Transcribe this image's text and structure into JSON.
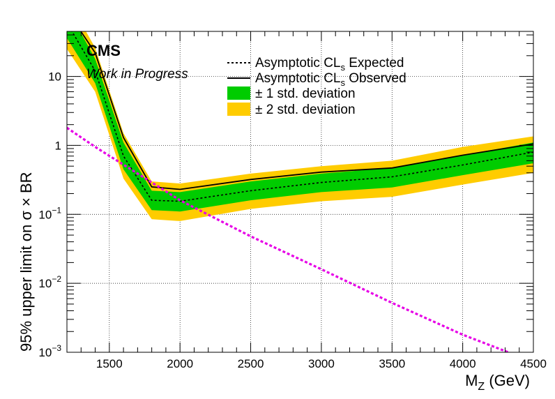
{
  "chart_data": {
    "type": "line",
    "title": "",
    "experiment_label": "CMS",
    "status_label": "Work in Progress",
    "xlabel": "M",
    "xlabel_sub": "Z",
    "xlabel_unit": " (GeV)",
    "ylabel": "95% upper limit on  σ × BR",
    "xlim": [
      1200,
      4500
    ],
    "ylim": [
      0.001,
      45
    ],
    "yscale": "log",
    "grid": true,
    "x_ticks": [
      1500,
      2000,
      2500,
      3000,
      3500,
      4000,
      4500
    ],
    "x_tick_labels": [
      "1500",
      "2000",
      "2500",
      "3000",
      "3500",
      "4000",
      "4500"
    ],
    "y_ticks": [
      {
        "value": 10,
        "base": "10",
        "exp": ""
      },
      {
        "value": 1,
        "base": "1",
        "exp": ""
      },
      {
        "value": 0.1,
        "base": "10",
        "exp": "−1"
      },
      {
        "value": 0.01,
        "base": "10",
        "exp": "−2"
      },
      {
        "value": 0.001,
        "base": "10",
        "exp": "−3"
      }
    ],
    "legend_position": "top-center",
    "legend": [
      {
        "label_pre": "Asymptotic CL",
        "label_sub": "s",
        "label_post": " Expected",
        "style": "dotted-line"
      },
      {
        "label_pre": "Asymptotic CL",
        "label_sub": "s",
        "label_post": " Observed",
        "style": "solid-line"
      },
      {
        "label_pre": "± 1 std. deviation",
        "label_sub": "",
        "label_post": "",
        "style": "green-box"
      },
      {
        "label_pre": "± 2 std. deviation",
        "label_sub": "",
        "label_post": "",
        "style": "yellow-box"
      }
    ],
    "colors": {
      "band_1sigma": "#00cc00",
      "band_2sigma": "#ffcc00",
      "theory": "#e600e6",
      "expected": "#000000",
      "observed": "#000000"
    },
    "series": [
      {
        "key": "expected",
        "x": [
          1200,
          1400,
          1600,
          1800,
          2000,
          2500,
          3000,
          3500,
          4000,
          4500
        ],
        "values": [
          60,
          12,
          0.7,
          0.16,
          0.155,
          0.22,
          0.29,
          0.35,
          0.52,
          0.8
        ]
      },
      {
        "key": "observed",
        "x": [
          1200,
          1400,
          1600,
          1800,
          2000,
          2500,
          3000,
          3500,
          4000,
          4500
        ],
        "values": [
          90,
          22,
          1.3,
          0.25,
          0.23,
          0.32,
          0.41,
          0.47,
          0.72,
          1.05
        ]
      },
      {
        "key": "band_1sigma",
        "x": [
          1200,
          1400,
          1600,
          1800,
          2000,
          2500,
          3000,
          3500,
          4000,
          4500
        ],
        "low": [
          36,
          8,
          0.45,
          0.115,
          0.11,
          0.16,
          0.21,
          0.245,
          0.37,
          0.55
        ],
        "high": [
          100,
          18,
          1.1,
          0.22,
          0.21,
          0.3,
          0.39,
          0.47,
          0.72,
          1.1
        ]
      },
      {
        "key": "band_2sigma",
        "x": [
          1200,
          1400,
          1600,
          1800,
          2000,
          2500,
          3000,
          3500,
          4000,
          4500
        ],
        "low": [
          25,
          6,
          0.33,
          0.085,
          0.08,
          0.12,
          0.155,
          0.18,
          0.27,
          0.4
        ],
        "high": [
          140,
          26,
          1.5,
          0.3,
          0.28,
          0.39,
          0.5,
          0.6,
          0.95,
          1.35
        ]
      },
      {
        "key": "theory",
        "x": [
          1200,
          1400,
          2000,
          2500,
          3000,
          3500,
          4000,
          4350
        ],
        "values": [
          1.8,
          0.95,
          0.16,
          0.048,
          0.016,
          0.0052,
          0.0018,
          0.00095
        ]
      }
    ]
  }
}
